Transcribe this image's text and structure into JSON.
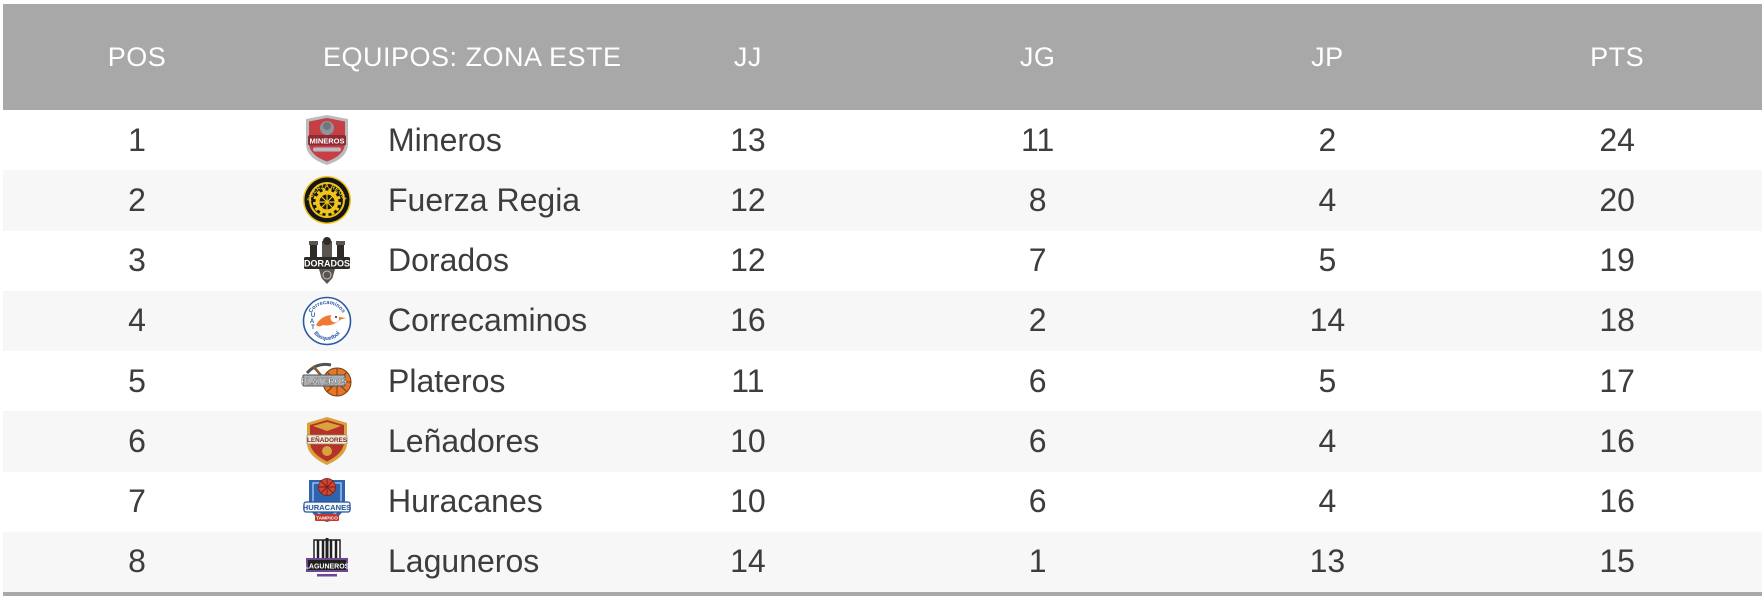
{
  "colors": {
    "header_bg": "#a8a8a8",
    "header_text": "#ffffff",
    "row_bg": "#ffffff",
    "row_alt_bg": "#f7f7f7",
    "row_text": "#3d3d3d"
  },
  "table": {
    "columns": [
      {
        "key": "pos",
        "label": "POS"
      },
      {
        "key": "team",
        "label": "EQUIPOS: ZONA ESTE"
      },
      {
        "key": "jj",
        "label": "JJ"
      },
      {
        "key": "jg",
        "label": "JG"
      },
      {
        "key": "jp",
        "label": "JP"
      },
      {
        "key": "pts",
        "label": "PTS"
      }
    ],
    "rows": [
      {
        "pos": "1",
        "team": "Mineros",
        "jj": "13",
        "jg": "11",
        "jp": "2",
        "pts": "24",
        "logo": {
          "kind": "mineros",
          "text": "MINEROS",
          "colors": {
            "primary": "#c73e44",
            "secondary": "#8e2b33",
            "trim": "#b9bcbf",
            "accent": "#8e969c"
          }
        }
      },
      {
        "pos": "2",
        "team": "Fuerza Regia",
        "jj": "12",
        "jg": "8",
        "jp": "4",
        "pts": "20",
        "logo": {
          "kind": "fuerza-regia",
          "text": "FUERZA REGIA",
          "colors": {
            "primary": "#161616",
            "secondary": "#f0c419"
          }
        }
      },
      {
        "pos": "3",
        "team": "Dorados",
        "jj": "12",
        "jg": "7",
        "jp": "5",
        "pts": "19",
        "logo": {
          "kind": "dorados",
          "text": "DORADOS",
          "colors": {
            "primary": "#2e2a26",
            "secondary": "#5a554f"
          }
        }
      },
      {
        "pos": "4",
        "team": "Correcaminos",
        "jj": "16",
        "jg": "2",
        "jp": "14",
        "pts": "18",
        "logo": {
          "kind": "correcaminos",
          "text": "Correcaminos",
          "text2": "Basquetbol",
          "text3": "UAT",
          "colors": {
            "primary": "#2b59a5",
            "secondary": "#ee7a33"
          }
        }
      },
      {
        "pos": "5",
        "team": "Plateros",
        "jj": "11",
        "jg": "6",
        "jp": "5",
        "pts": "17",
        "logo": {
          "kind": "plateros",
          "text": "PLATEROS",
          "colors": {
            "primary": "#e5762a",
            "secondary": "#aeb2b5",
            "trim": "#4e5357"
          }
        }
      },
      {
        "pos": "6",
        "team": "Leñadores",
        "jj": "10",
        "jg": "6",
        "jp": "4",
        "pts": "16",
        "logo": {
          "kind": "lenadores",
          "text": "LEÑADORES",
          "colors": {
            "primary": "#b5322a",
            "secondary": "#d9a23a",
            "trim": "#f1e9d8"
          }
        }
      },
      {
        "pos": "7",
        "team": "Huracanes",
        "jj": "10",
        "jg": "6",
        "jp": "4",
        "pts": "16",
        "logo": {
          "kind": "huracanes",
          "text": "HURACANES",
          "text2": "TAMPICO",
          "colors": {
            "primary": "#2f63ae",
            "secondary": "#cf4633",
            "trim": "#c0392b"
          }
        }
      },
      {
        "pos": "8",
        "team": "Laguneros",
        "jj": "14",
        "jg": "1",
        "jp": "13",
        "pts": "15",
        "logo": {
          "kind": "laguneros",
          "text": "LAGUNEROS",
          "colors": {
            "primary": "#6d4794",
            "secondary": "#221f20"
          }
        }
      }
    ]
  }
}
